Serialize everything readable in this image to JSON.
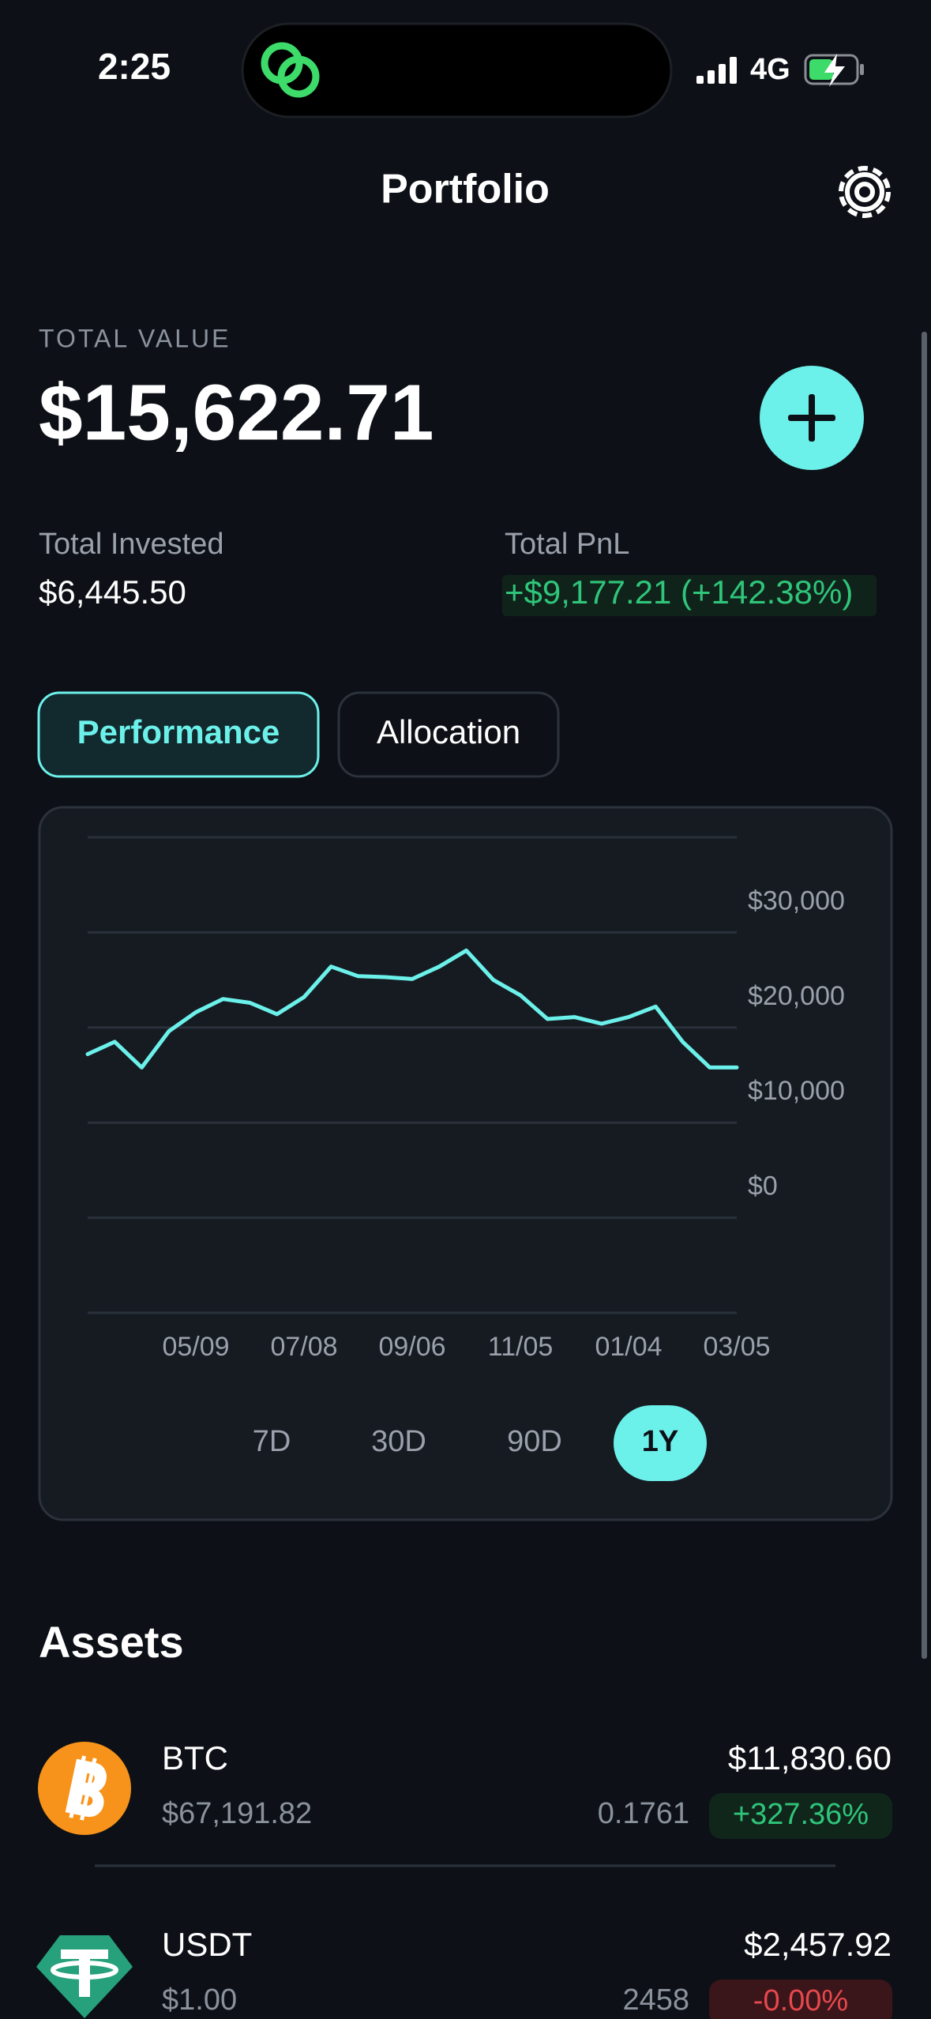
{
  "status_bar": {
    "time": "2:25",
    "network": "4G"
  },
  "header": {
    "title": "Portfolio"
  },
  "summary": {
    "total_value_label": "TOTAL VALUE",
    "total_value": "$15,622.71",
    "invested_label": "Total Invested",
    "invested": "$6,445.50",
    "pnl_label": "Total PnL",
    "pnl": "+$9,177.21 (+142.38%)"
  },
  "tabs": [
    "Performance",
    "Allocation"
  ],
  "chart_data": {
    "type": "line",
    "categories": [
      null,
      null,
      null,
      null,
      "05/09",
      null,
      null,
      null,
      "07/08",
      null,
      null,
      null,
      "09/06",
      null,
      null,
      null,
      "11/05",
      null,
      null,
      null,
      "01/04",
      null,
      null,
      null,
      "03/05"
    ],
    "values": [
      17200,
      18500,
      15800,
      19600,
      21600,
      23000,
      22600,
      21400,
      23200,
      26400,
      25400,
      25300,
      25100,
      26400,
      28100,
      25000,
      23400,
      20900,
      21100,
      20400,
      21100,
      22200,
      18500,
      15800,
      15800
    ],
    "color": "#6cf0ea",
    "ylim": [
      -10000,
      40000
    ],
    "yticks": [
      {
        "value": 0,
        "label": "$0"
      },
      {
        "value": 10000,
        "label": "$10,000"
      },
      {
        "value": 20000,
        "label": "$20,000"
      },
      {
        "value": 30000,
        "label": "$30,000"
      }
    ],
    "grid": true
  },
  "ranges": [
    "7D",
    "30D",
    "90D",
    "1Y"
  ],
  "assets_title": "Assets",
  "assets": [
    {
      "symbol": "BTC",
      "price": "$67,191.82",
      "value": "$11,830.60",
      "amount": "0.1761",
      "change": "+327.36%"
    },
    {
      "symbol": "USDT",
      "price": "$1.00",
      "value": "$2,457.92",
      "amount": "2458",
      "change": "-0.00%"
    }
  ]
}
